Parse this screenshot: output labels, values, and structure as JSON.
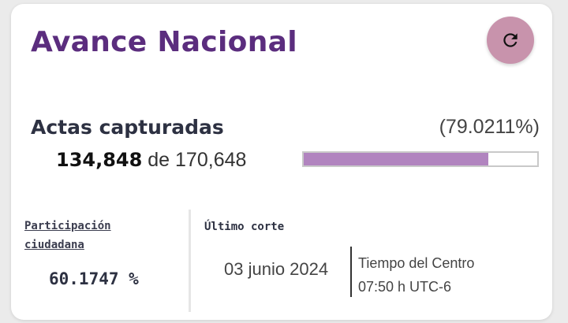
{
  "header": {
    "title": "Avance Nacional",
    "refresh_icon": "refresh-icon"
  },
  "actas": {
    "label": "Actas capturadas",
    "percent": "(79.0211%)",
    "captured": "134,848",
    "connector": "de",
    "total": "170,648",
    "progress_fraction": 0.790211
  },
  "participacion": {
    "label": "Participación ciudadana",
    "value": "60.1747 %"
  },
  "corte": {
    "label": "Último corte",
    "date": "03 junio 2024",
    "timezone_name": "Tiempo del Centro",
    "time": "07:50 h UTC-6"
  },
  "colors": {
    "title": "#5b2d7e",
    "progress": "#b184bf",
    "refresh_button": "#c893ac"
  }
}
